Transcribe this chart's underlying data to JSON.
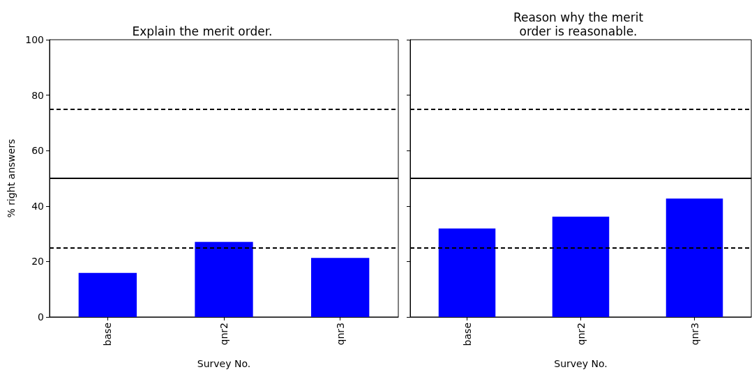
{
  "chart_data": [
    {
      "type": "bar",
      "title": "Explain the merit order.",
      "xlabel": "Survey No.",
      "ylabel": "% right answers",
      "categories": [
        "base",
        "qnr2",
        "qnr3"
      ],
      "values": [
        15.9,
        27.1,
        21.3
      ],
      "color": "#0000ff",
      "ylim": [
        0,
        100
      ],
      "yticks": [
        0,
        20,
        40,
        60,
        80,
        100
      ],
      "ref_lines": [
        {
          "axis": "y",
          "value": 25,
          "color": "#000000",
          "line_style": "dashed"
        },
        {
          "axis": "y",
          "value": 50,
          "color": "#000000",
          "line_style": "solid"
        },
        {
          "axis": "y",
          "value": 75,
          "color": "#000000",
          "line_style": "dashed"
        }
      ]
    },
    {
      "type": "bar",
      "title": "Reason why the merit\norder is reasonable.",
      "xlabel": "Survey No.",
      "categories": [
        "base",
        "qnr2",
        "qnr3"
      ],
      "values": [
        31.9,
        36.2,
        42.7
      ],
      "color": "#0000ff",
      "ylim": [
        0,
        100
      ],
      "yticks": [
        0,
        20,
        40,
        60,
        80,
        100
      ],
      "tick_labels": "x",
      "ref_lines": [
        {
          "axis": "y",
          "value": 25,
          "color": "#000000",
          "line_style": "dashed"
        },
        {
          "axis": "y",
          "value": 50,
          "color": "#000000",
          "line_style": "solid"
        },
        {
          "axis": "y",
          "value": 75,
          "color": "#000000",
          "line_style": "dashed"
        }
      ]
    }
  ]
}
